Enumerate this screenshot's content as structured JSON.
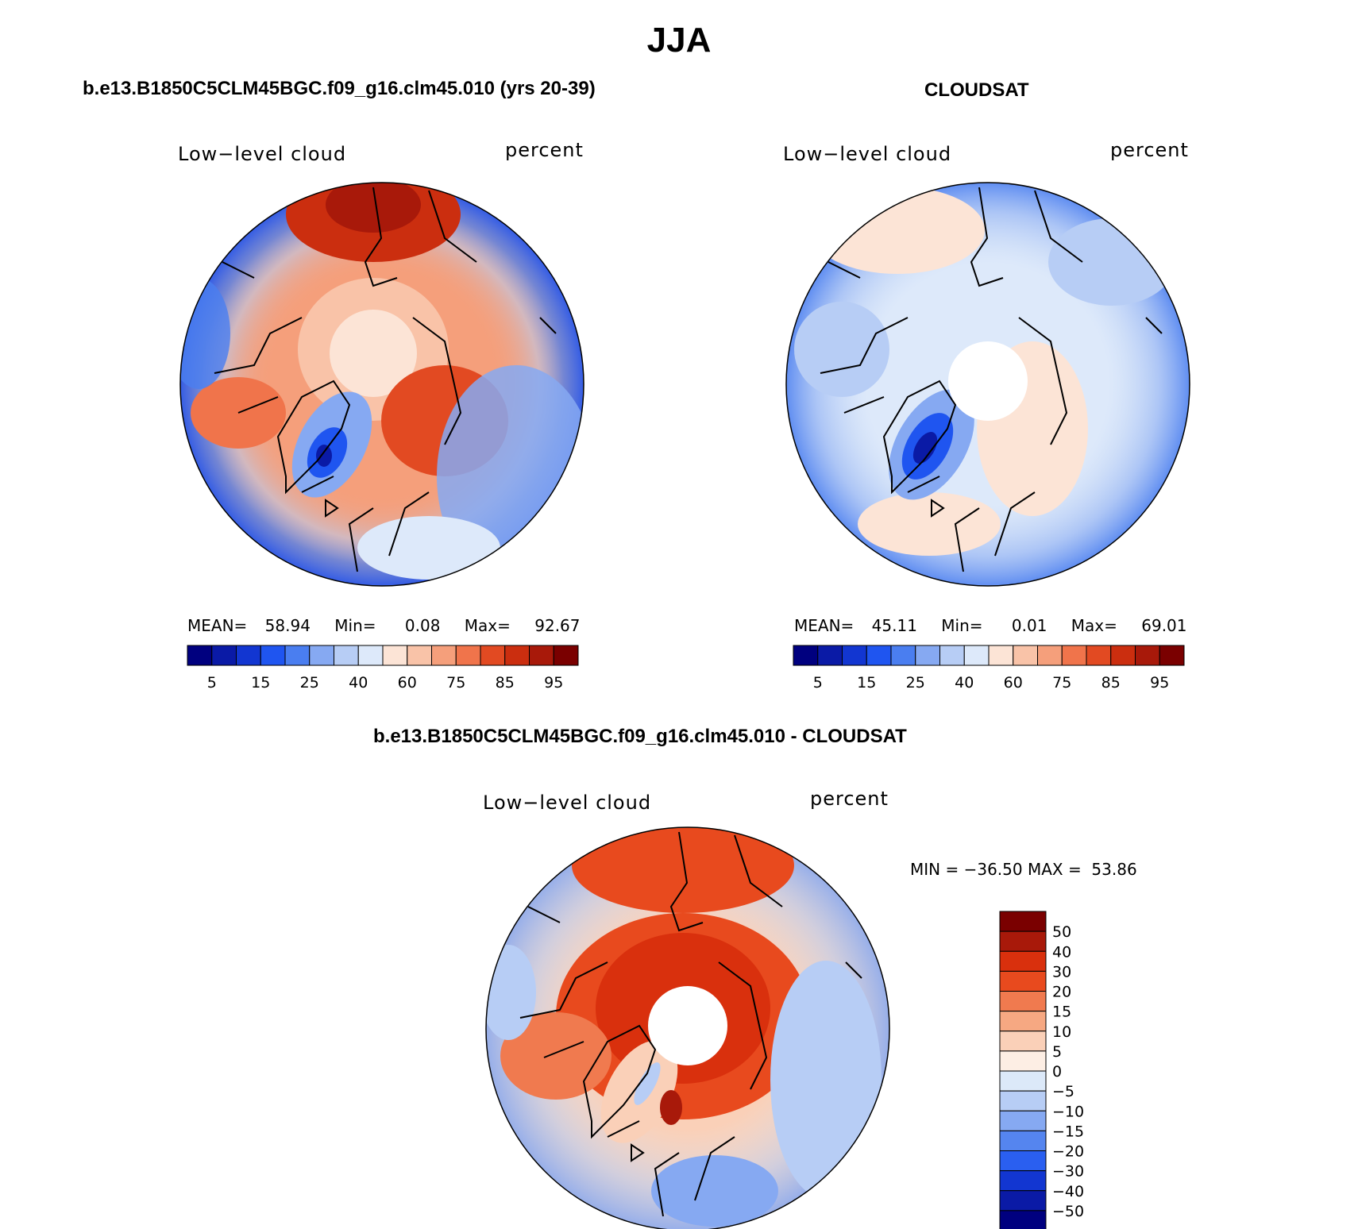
{
  "header": {
    "season": "JJA"
  },
  "panels": [
    {
      "title": "b.e13.B1850C5CLM45BGC.f09_g16.clm45.010 (yrs 20-39)",
      "left_label": "Low−level cloud",
      "right_label": "percent",
      "stats": {
        "mean_label": "MEAN=",
        "mean": "58.94",
        "min_label": "Min=",
        "min": "0.08",
        "max_label": "Max=",
        "max": "92.67"
      },
      "missing_pole": false
    },
    {
      "title": "CLOUDSAT",
      "left_label": "Low−level cloud",
      "right_label": "percent",
      "stats": {
        "mean_label": "MEAN=",
        "mean": "45.11",
        "min_label": "Min=",
        "min": "0.01",
        "max_label": "Max=",
        "max": "69.01"
      },
      "missing_pole": true
    },
    {
      "title": "b.e13.B1850C5CLM45BGC.f09_g16.clm45.010 - CLOUDSAT",
      "left_label": "Low−level cloud",
      "right_label": "percent",
      "stats": {
        "text": "MIN = −36.50 MAX =  53.86"
      },
      "missing_pole": true
    }
  ],
  "colorbars": {
    "absolute": {
      "tick_labels": [
        "5",
        "15",
        "25",
        "40",
        "60",
        "75",
        "85",
        "95"
      ],
      "colors": [
        "#00007f",
        "#0a1aa6",
        "#1236d1",
        "#1f55f0",
        "#4a7ef0",
        "#86a9f2",
        "#b7cdf5",
        "#dde9fa",
        "#fce4d6",
        "#f9c3a8",
        "#f59f7b",
        "#f0744b",
        "#e24a22",
        "#cb2e0f",
        "#a8190a",
        "#7a0000"
      ]
    },
    "difference": {
      "tick_labels": [
        "50",
        "40",
        "30",
        "20",
        "15",
        "10",
        "5",
        "0",
        "−5",
        "−10",
        "−15",
        "−20",
        "−30",
        "−40",
        "−50"
      ],
      "colors": [
        "#7a0000",
        "#a8190a",
        "#d9300d",
        "#e84a1e",
        "#f07a4f",
        "#f6a882",
        "#fad0b8",
        "#fdeee4",
        "#dce9f9",
        "#b7cdf5",
        "#86a9f2",
        "#5585ef",
        "#2a5ff0",
        "#1236d1",
        "#0a1aa6",
        "#00007f"
      ]
    }
  }
}
